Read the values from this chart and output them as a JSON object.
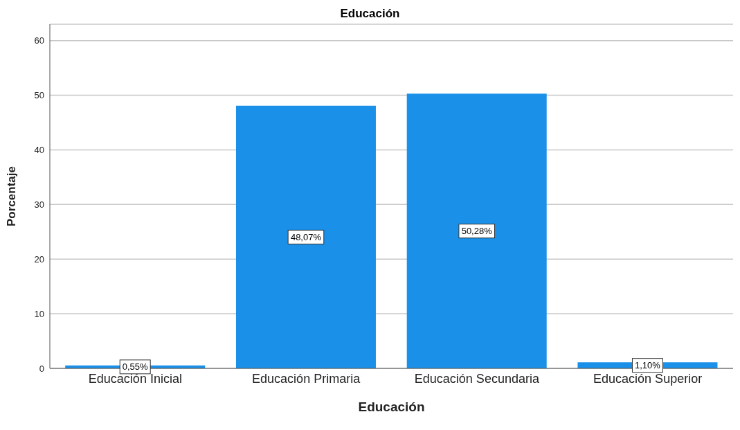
{
  "chart_data": {
    "type": "bar",
    "title": "Educación",
    "xlabel": "Educación",
    "ylabel": "Porcentaje",
    "categories": [
      "Educación Inicial",
      "Educación Primaria",
      "Educación Secundaria",
      "Educación Superior"
    ],
    "values": [
      0.55,
      48.07,
      50.28,
      1.1
    ],
    "value_labels": [
      "0,55%",
      "48,07%",
      "50,28%",
      "1,10%"
    ],
    "color": "#1a90e8",
    "ylim": [
      0,
      63
    ],
    "yticks": [
      0,
      10,
      20,
      30,
      40,
      50,
      60
    ],
    "grid": "y"
  }
}
